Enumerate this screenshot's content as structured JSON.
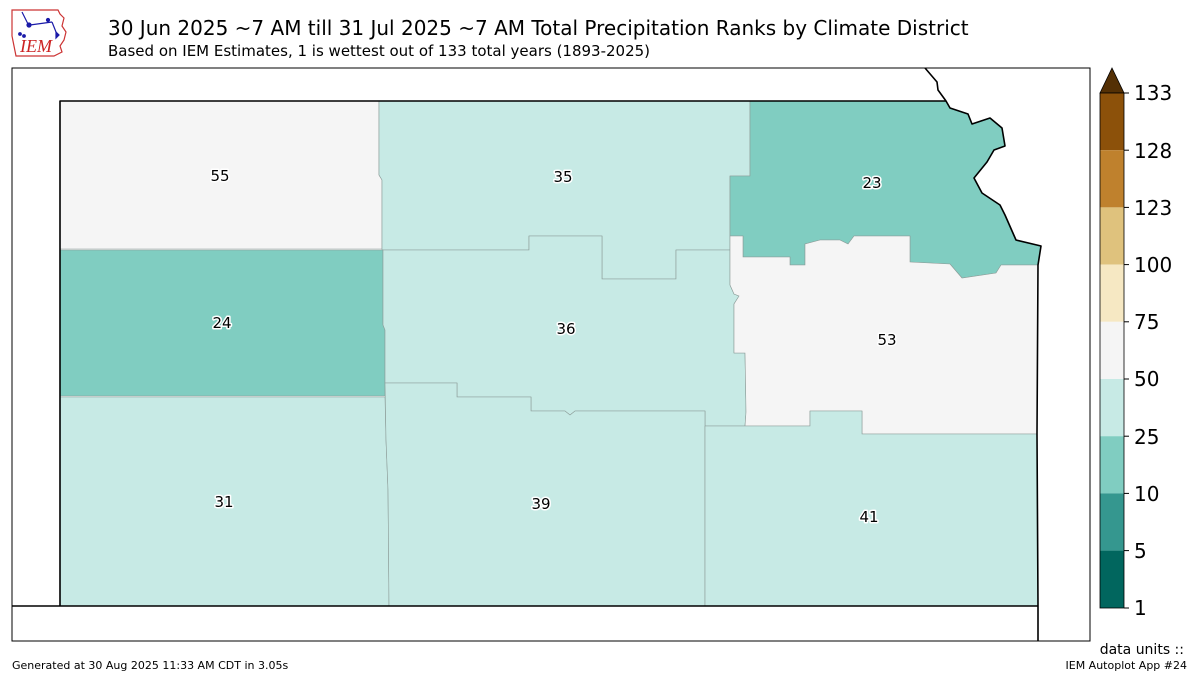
{
  "header": {
    "logo_text": "IEM",
    "title": "30 Jun 2025 ~7 AM till 31 Jul 2025 ~7 AM Total Precipitation Ranks by Climate District",
    "subtitle": "Based on IEM Estimates, 1 is wettest out of 133 total years (1893-2025)"
  },
  "colors": {
    "rank_1_5": "#01665e",
    "rank_5_10": "#35978f",
    "rank_10_25": "#80cdc1",
    "rank_25_50": "#c7eae5",
    "rank_50_75": "#f5f5f5",
    "rank_75_100": "#f6e8c3",
    "rank_100_123": "#dfc27d",
    "rank_123_128": "#bf812d",
    "rank_128_133": "#8c510a",
    "extend_max": "#543005",
    "border": "#000000"
  },
  "districts": [
    {
      "id": "northwest",
      "rank": "55"
    },
    {
      "id": "north-central",
      "rank": "35"
    },
    {
      "id": "northeast",
      "rank": "23"
    },
    {
      "id": "west-central",
      "rank": "24"
    },
    {
      "id": "central",
      "rank": "36"
    },
    {
      "id": "east-central",
      "rank": "53"
    },
    {
      "id": "southwest",
      "rank": "31"
    },
    {
      "id": "south-central",
      "rank": "39"
    },
    {
      "id": "southeast",
      "rank": "41"
    }
  ],
  "colorbar": {
    "ticks": [
      "1",
      "5",
      "10",
      "25",
      "50",
      "75",
      "100",
      "123",
      "128",
      "133"
    ]
  },
  "footer": {
    "generated": "Generated at 30 Aug 2025 11:33 AM CDT in 3.05s",
    "units": "data units ::",
    "app": "IEM Autoplot App #24"
  }
}
